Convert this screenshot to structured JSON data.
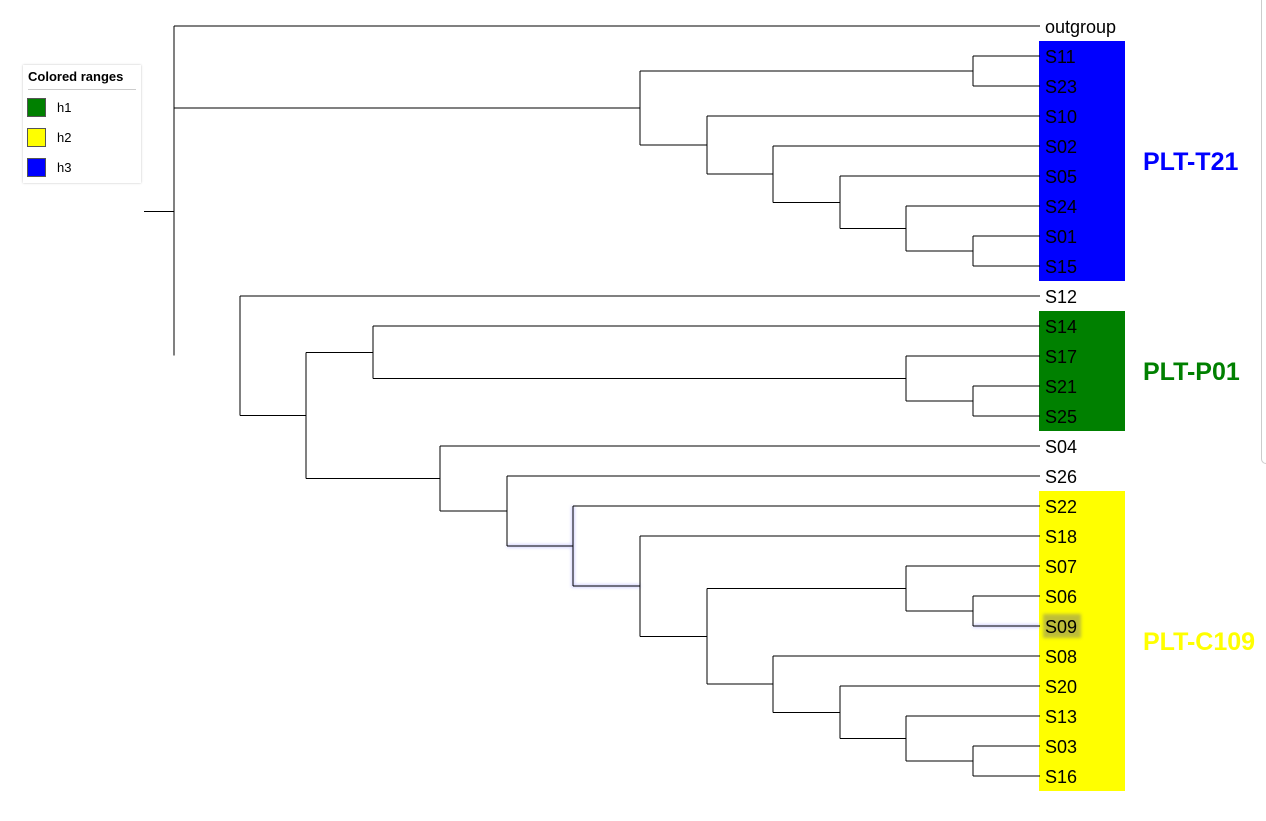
{
  "legend": {
    "title": "Colored ranges",
    "items": [
      {
        "label": "h1",
        "color": "#008000"
      },
      {
        "label": "h2",
        "color": "#ffff00"
      },
      {
        "label": "h3",
        "color": "#0000ff"
      }
    ]
  },
  "leaves": [
    "outgroup",
    "S11",
    "S23",
    "S10",
    "S02",
    "S05",
    "S24",
    "S01",
    "S15",
    "S12",
    "S14",
    "S17",
    "S21",
    "S25",
    "S04",
    "S26",
    "S22",
    "S18",
    "S07",
    "S06",
    "S09",
    "S08",
    "S20",
    "S13",
    "S03",
    "S16"
  ],
  "clades": [
    {
      "label": "PLT-T21",
      "color": "#0000ff",
      "first_leaf": "S11",
      "last_leaf": "S15"
    },
    {
      "label": "PLT-P01",
      "color": "#008000",
      "first_leaf": "S14",
      "last_leaf": "S25"
    },
    {
      "label": "PLT-C109",
      "color": "#ffff00",
      "first_leaf": "S22",
      "last_leaf": "S16"
    }
  ]
}
